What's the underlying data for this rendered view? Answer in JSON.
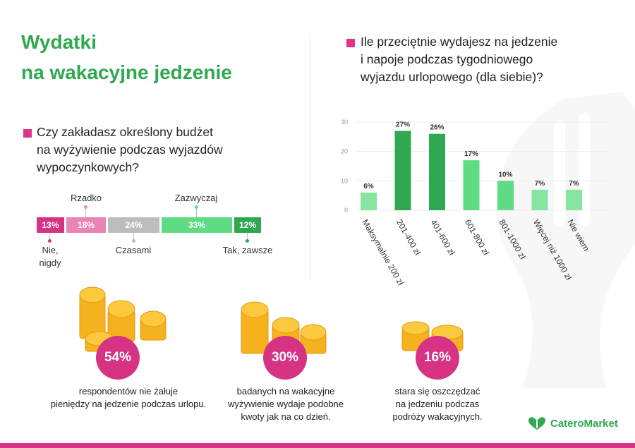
{
  "title": {
    "line1": "Wydatki",
    "line2": "na wakacyjne jedzenie"
  },
  "colors": {
    "accent": "#d63384",
    "brand": "#2fa84f"
  },
  "question_left": "Czy zakładasz określony budżet\nna wyżywienie podczas wyjazdów\nwypoczynkowych?",
  "question_right": "Ile przeciętnie wydajesz na jedzenie\ni napoje podczas tygodniowego\nwyjazdu urlopowego (dla siebie)?",
  "budget_bar": {
    "segments": [
      {
        "label": "Nie,\nnigdy",
        "value": 13,
        "value_text": "13%",
        "color": "#d63384"
      },
      {
        "label": "Rzadko",
        "value": 18,
        "value_text": "18%",
        "color": "#ea84b4"
      },
      {
        "label": "Czasami",
        "value": 24,
        "value_text": "24%",
        "color": "#bdbdbd"
      },
      {
        "label": "Zazwyczaj",
        "value": 33,
        "value_text": "33%",
        "color": "#5fdb84"
      },
      {
        "label": "Tak, zawsze",
        "value": 12,
        "value_text": "12%",
        "color": "#2fa84f"
      }
    ]
  },
  "chart_data": {
    "type": "bar",
    "categories": [
      "Maksymalnie 200 zł",
      "201-400 zł",
      "401-600 zł",
      "601-800 zł",
      "801-1000 zł",
      "Więcej niż 1000 zł",
      "Nie wiem"
    ],
    "values": [
      6,
      27,
      26,
      17,
      10,
      7,
      7
    ],
    "value_labels": [
      "6%",
      "27%",
      "26%",
      "17%",
      "10%",
      "7%",
      "7%"
    ],
    "bar_colors": [
      "#86e5a0",
      "#2fa84f",
      "#2fa84f",
      "#5fdb84",
      "#5fdb84",
      "#86e5a0",
      "#86e5a0"
    ],
    "yticks": [
      0,
      10,
      20,
      30
    ],
    "ylim": [
      0,
      30
    ],
    "grid": true
  },
  "stats": [
    {
      "value": "54%",
      "text": "respondentów nie żałuje\npieniędzy na jedzenie podczas urlopu."
    },
    {
      "value": "30%",
      "text": "badanych na wakacyjne\nwyżywienie wydaje podobne\nkwoty jak na co dzień."
    },
    {
      "value": "16%",
      "text": "stara się oszczędzać\nna jedzeniu podczas\npodróży wakacyjnych."
    }
  ],
  "logo": {
    "text": "CateroMarket",
    "icon": "leaf-heart-icon"
  }
}
